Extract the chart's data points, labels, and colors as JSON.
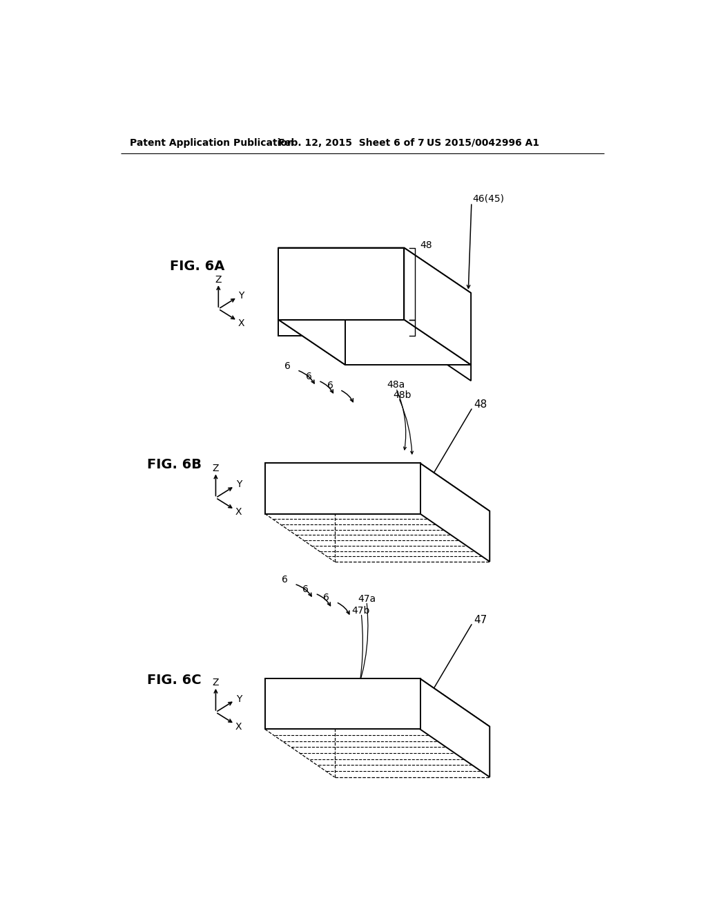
{
  "background_color": "#ffffff",
  "header_left": "Patent Application Publication",
  "header_mid": "Feb. 12, 2015  Sheet 6 of 7",
  "header_right": "US 2015/0042996 A1",
  "lw": 1.4,
  "lw_thin": 0.9,
  "lw_hatch": 0.8
}
